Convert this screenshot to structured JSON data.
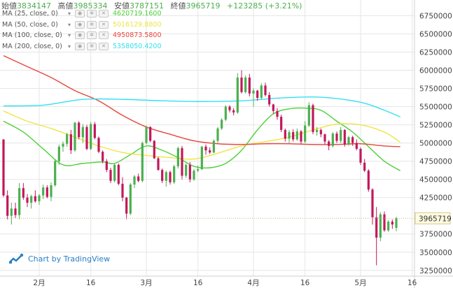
{
  "header": {
    "open_label": "始値",
    "open": "3834147",
    "high_label": "高値",
    "high": "3985334",
    "low_label": "安値",
    "low": "3787151",
    "close_label": "終値",
    "close": "3965719",
    "change": "+123285 (+3.21%)"
  },
  "legend": [
    {
      "name": "MA (25, close, 0)",
      "value": "4620719.1600",
      "color": "#4cd137",
      "icons": [
        "eye-icon",
        "gear-icon",
        "close-icon"
      ]
    },
    {
      "name": "MA (50, close, 0)",
      "value": "5016129.8800",
      "color": "#f0e442",
      "icons": [
        "eye-icon",
        "gear-icon",
        "close-icon"
      ]
    },
    {
      "name": "MA (100, close, 0)",
      "value": "4950873.5800",
      "color": "#e8453c",
      "icons": [
        "eye-icon",
        "gear-icon",
        "close-icon"
      ]
    },
    {
      "name": "MA (200, close, 0)",
      "value": "5358050.4200",
      "color": "#33e0f0",
      "icons": [
        "eye-icon",
        "gear-icon",
        "close-icon"
      ]
    }
  ],
  "watermark": "Chart by TradingView",
  "last_price_label": "3965719",
  "colors": {
    "up": "#4caf50",
    "down": "#c2185b",
    "grid": "#e6e6e6",
    "last_line": "#c9b77a"
  },
  "chart_data": {
    "type": "candlestick",
    "y_ticks": [
      "6750000",
      "6500000",
      "6250000",
      "6000000",
      "5750000",
      "5500000",
      "5250000",
      "5000000",
      "4750000",
      "4500000",
      "4250000",
      "3750000",
      "3500000",
      "3250000"
    ],
    "ylim": [
      3200000,
      6850000
    ],
    "x_ticks": [
      "2月",
      "16",
      "3月",
      "16",
      "4月",
      "16",
      "5月",
      "16"
    ],
    "x_tick_index": [
      9,
      22,
      36,
      49,
      63,
      76,
      90,
      103
    ],
    "candles": [
      [
        5050000,
        5050000,
        4260000,
        4280000
      ],
      [
        4280000,
        4350000,
        3950000,
        4000000
      ],
      [
        4000000,
        4180000,
        3880000,
        4100000
      ],
      [
        4100000,
        4180000,
        3970000,
        4010000
      ],
      [
        4010000,
        4450000,
        3950000,
        4380000
      ],
      [
        4380000,
        4450000,
        4220000,
        4250000
      ],
      [
        4250000,
        4300000,
        4120000,
        4180000
      ],
      [
        4180000,
        4290000,
        4100000,
        4270000
      ],
      [
        4270000,
        4350000,
        4180000,
        4200000
      ],
      [
        4200000,
        4300000,
        4150000,
        4280000
      ],
      [
        4280000,
        4430000,
        4230000,
        4390000
      ],
      [
        4390000,
        4420000,
        4240000,
        4260000
      ],
      [
        4260000,
        4460000,
        4200000,
        4420000
      ],
      [
        4420000,
        4780000,
        4400000,
        4750000
      ],
      [
        4750000,
        4980000,
        4700000,
        4950000
      ],
      [
        4950000,
        5020000,
        4880000,
        4990000
      ],
      [
        4990000,
        5140000,
        4950000,
        5120000
      ],
      [
        5120000,
        5180000,
        4850000,
        4900000
      ],
      [
        4900000,
        5290000,
        4880000,
        5280000
      ],
      [
        5280000,
        5300000,
        5050000,
        5080000
      ],
      [
        5080000,
        5260000,
        5000000,
        5220000
      ],
      [
        5220000,
        5250000,
        4900000,
        4920000
      ],
      [
        4920000,
        5290000,
        4900000,
        5260000
      ],
      [
        5260000,
        5290000,
        5050000,
        5070000
      ],
      [
        5070000,
        5090000,
        4860000,
        4880000
      ],
      [
        4880000,
        4900000,
        4720000,
        4750000
      ],
      [
        4750000,
        4780000,
        4600000,
        4630000
      ],
      [
        4630000,
        4660000,
        4450000,
        4480000
      ],
      [
        4480000,
        4720000,
        4460000,
        4700000
      ],
      [
        4700000,
        4720000,
        4420000,
        4440000
      ],
      [
        4440000,
        4530000,
        4200000,
        4250000
      ],
      [
        4250000,
        4260000,
        3950000,
        4030000
      ],
      [
        4030000,
        4450000,
        4010000,
        4430000
      ],
      [
        4430000,
        4560000,
        4380000,
        4540000
      ],
      [
        4540000,
        4580000,
        4460000,
        4480000
      ],
      [
        4480000,
        5020000,
        4460000,
        5000000
      ],
      [
        5000000,
        5240000,
        4980000,
        5220000
      ],
      [
        5220000,
        5230000,
        5010000,
        5030000
      ],
      [
        5030000,
        5040000,
        4780000,
        4790000
      ],
      [
        4790000,
        4810000,
        4620000,
        4630000
      ],
      [
        4630000,
        4650000,
        4450000,
        4480000
      ],
      [
        4480000,
        4620000,
        4400000,
        4600000
      ],
      [
        4600000,
        4620000,
        4430000,
        4460000
      ],
      [
        4460000,
        4700000,
        4440000,
        4680000
      ],
      [
        4680000,
        4950000,
        4650000,
        4930000
      ],
      [
        4930000,
        4960000,
        4500000,
        4550000
      ],
      [
        4550000,
        4720000,
        4520000,
        4700000
      ],
      [
        4700000,
        4740000,
        4460000,
        4500000
      ],
      [
        4500000,
        4640000,
        4480000,
        4620000
      ],
      [
        4620000,
        4690000,
        4600000,
        4640000
      ],
      [
        4640000,
        4960000,
        4630000,
        4950000
      ],
      [
        4950000,
        4980000,
        4840000,
        4900000
      ],
      [
        4900000,
        4940000,
        4850000,
        4870000
      ],
      [
        4870000,
        5050000,
        4860000,
        5030000
      ],
      [
        5030000,
        5220000,
        5000000,
        5200000
      ],
      [
        5200000,
        5340000,
        5180000,
        5320000
      ],
      [
        5320000,
        5520000,
        5300000,
        5500000
      ],
      [
        5500000,
        5520000,
        5420000,
        5450000
      ],
      [
        5450000,
        5480000,
        5380000,
        5420000
      ],
      [
        5420000,
        5960000,
        5400000,
        5900000
      ],
      [
        5900000,
        6000000,
        5680000,
        5700000
      ],
      [
        5700000,
        5930000,
        5680000,
        5900000
      ],
      [
        5900000,
        5950000,
        5640000,
        5680000
      ],
      [
        5680000,
        5750000,
        5500000,
        5720000
      ],
      [
        5720000,
        5730000,
        5580000,
        5620000
      ],
      [
        5620000,
        5820000,
        5600000,
        5790000
      ],
      [
        5790000,
        5830000,
        5640000,
        5660000
      ],
      [
        5660000,
        5700000,
        5500000,
        5530000
      ],
      [
        5530000,
        5540000,
        5400000,
        5440000
      ],
      [
        5440000,
        5480000,
        5320000,
        5360000
      ],
      [
        5360000,
        5390000,
        5150000,
        5180000
      ],
      [
        5180000,
        5200000,
        5020000,
        5060000
      ],
      [
        5060000,
        5180000,
        5000000,
        5150000
      ],
      [
        5150000,
        5190000,
        5020000,
        5050000
      ],
      [
        5050000,
        5200000,
        5030000,
        5160000
      ],
      [
        5160000,
        5180000,
        4990000,
        5020000
      ],
      [
        5020000,
        5300000,
        5000000,
        5240000
      ],
      [
        5240000,
        5560000,
        5220000,
        5520000
      ],
      [
        5520000,
        5540000,
        5120000,
        5150000
      ],
      [
        5150000,
        5220000,
        5100000,
        5180000
      ],
      [
        5180000,
        5200000,
        5080000,
        5120000
      ],
      [
        5120000,
        5130000,
        4980000,
        5020000
      ],
      [
        5020000,
        5040000,
        4900000,
        4960000
      ],
      [
        4960000,
        5150000,
        4940000,
        5130000
      ],
      [
        5130000,
        5160000,
        5000000,
        5030000
      ],
      [
        5030000,
        5220000,
        5000000,
        5180000
      ],
      [
        5180000,
        5190000,
        4950000,
        4980000
      ],
      [
        4980000,
        5100000,
        4960000,
        5080000
      ],
      [
        5080000,
        5100000,
        4960000,
        5000000
      ],
      [
        5000000,
        5050000,
        4900000,
        4920000
      ],
      [
        4920000,
        4940000,
        4700000,
        4730000
      ],
      [
        4730000,
        4780000,
        4600000,
        4620000
      ],
      [
        4620000,
        4640000,
        4330000,
        4360000
      ],
      [
        4360000,
        4380000,
        3880000,
        3980000
      ],
      [
        3980000,
        4120000,
        3320000,
        3700000
      ],
      [
        3700000,
        4050000,
        3650000,
        4020000
      ],
      [
        4020000,
        4060000,
        3780000,
        3800000
      ],
      [
        3800000,
        3940000,
        3780000,
        3920000
      ],
      [
        3920000,
        3950000,
        3820000,
        3880000
      ],
      [
        3834147,
        3985334,
        3787151,
        3965719
      ]
    ],
    "ma": {
      "MA (25, close, 0)": [
        [
          0,
          5300000
        ],
        [
          5,
          5150000
        ],
        [
          10,
          4920000
        ],
        [
          15,
          4700000
        ],
        [
          20,
          4720000
        ],
        [
          25,
          4740000
        ],
        [
          28,
          4720000
        ],
        [
          32,
          4840000
        ],
        [
          36,
          4960000
        ],
        [
          40,
          4900000
        ],
        [
          44,
          4800000
        ],
        [
          48,
          4680000
        ],
        [
          52,
          4660000
        ],
        [
          56,
          4720000
        ],
        [
          60,
          4900000
        ],
        [
          64,
          5180000
        ],
        [
          68,
          5400000
        ],
        [
          72,
          5470000
        ],
        [
          76,
          5480000
        ],
        [
          80,
          5450000
        ],
        [
          84,
          5300000
        ],
        [
          88,
          5150000
        ],
        [
          92,
          4950000
        ],
        [
          96,
          4750000
        ],
        [
          100,
          4620000
        ]
      ],
      "MA (50, close, 0)": [
        [
          0,
          5440000
        ],
        [
          6,
          5300000
        ],
        [
          12,
          5200000
        ],
        [
          18,
          5080000
        ],
        [
          24,
          4960000
        ],
        [
          30,
          4870000
        ],
        [
          36,
          4830000
        ],
        [
          42,
          4800000
        ],
        [
          48,
          4780000
        ],
        [
          54,
          4860000
        ],
        [
          60,
          4960000
        ],
        [
          66,
          5020000
        ],
        [
          72,
          5080000
        ],
        [
          78,
          5180000
        ],
        [
          84,
          5260000
        ],
        [
          90,
          5250000
        ],
        [
          96,
          5150000
        ],
        [
          100,
          5010000
        ]
      ],
      "MA (100, close, 0)": [
        [
          0,
          6200000
        ],
        [
          6,
          6050000
        ],
        [
          12,
          5900000
        ],
        [
          18,
          5720000
        ],
        [
          24,
          5580000
        ],
        [
          30,
          5380000
        ],
        [
          36,
          5220000
        ],
        [
          42,
          5120000
        ],
        [
          48,
          5030000
        ],
        [
          54,
          4990000
        ],
        [
          60,
          4980000
        ],
        [
          66,
          4990000
        ],
        [
          72,
          4990000
        ],
        [
          78,
          4980000
        ],
        [
          84,
          4980000
        ],
        [
          90,
          4990000
        ],
        [
          96,
          4960000
        ],
        [
          100,
          4950000
        ]
      ],
      "MA (200, close, 0)": [
        [
          0,
          5510000
        ],
        [
          10,
          5520000
        ],
        [
          20,
          5600000
        ],
        [
          30,
          5600000
        ],
        [
          40,
          5580000
        ],
        [
          50,
          5570000
        ],
        [
          60,
          5580000
        ],
        [
          70,
          5620000
        ],
        [
          80,
          5630000
        ],
        [
          90,
          5560000
        ],
        [
          96,
          5450000
        ],
        [
          100,
          5358000
        ]
      ]
    }
  }
}
